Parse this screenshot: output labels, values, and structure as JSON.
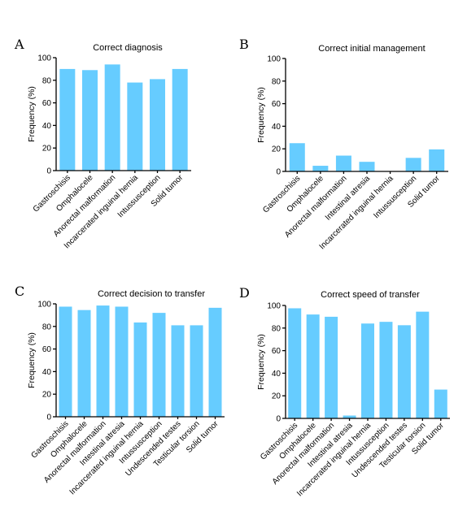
{
  "bar_color": "#66ccff",
  "chart_data": [
    {
      "type": "bar",
      "panel": "A",
      "title": "Correct diagnosis",
      "ylabel": "Frequency (%)",
      "ylim": [
        0,
        100
      ],
      "yticks": [
        0,
        20,
        40,
        60,
        80,
        100
      ],
      "categories": [
        "Gastroschisis",
        "Omphalocele",
        "Anorectal malformation",
        "Incarcerated inguinal hernia",
        "Intussusception",
        "Solid tumor"
      ],
      "values": [
        90,
        89,
        94,
        78,
        81,
        90
      ]
    },
    {
      "type": "bar",
      "panel": "B",
      "title": "Correct initial management",
      "ylabel": "Frequency (%)",
      "ylim": [
        0,
        100
      ],
      "yticks": [
        0,
        20,
        40,
        60,
        80,
        100
      ],
      "categories": [
        "Gastroschisis",
        "Omphalocele",
        "Anorectal malformation",
        "Intestinal atresia",
        "Incarcerated inguinal hernia",
        "Intussusception",
        "Solid tumor"
      ],
      "values": [
        25,
        5,
        14,
        8.5,
        0,
        12,
        19.5
      ]
    },
    {
      "type": "bar",
      "panel": "C",
      "title": "Correct decision to transfer",
      "ylabel": "Frequency (%)",
      "ylim": [
        0,
        100
      ],
      "yticks": [
        0,
        20,
        40,
        60,
        80,
        100
      ],
      "categories": [
        "Gastroschisis",
        "Omphalocele",
        "Anorectal malformation",
        "Intestinal atresia",
        "Incarcerated inguinal hernia",
        "Intussusception",
        "Undescended testes",
        "Testicular torsion",
        "Solid tumor"
      ],
      "values": [
        97.5,
        94.5,
        98.5,
        97.5,
        83.5,
        92,
        81,
        81,
        96.5
      ]
    },
    {
      "type": "bar",
      "panel": "D",
      "title": "Correct speed of transfer",
      "ylabel": "Frequency (%)",
      "ylim": [
        0,
        100
      ],
      "yticks": [
        0,
        20,
        40,
        60,
        80,
        100
      ],
      "categories": [
        "Gastroschisis",
        "Omphalocele",
        "Anorectal malformation",
        "Intestinal atresia",
        "Incarcerated inguinal hernia",
        "Intussusception",
        "Undescended testes",
        "Testicular torsion",
        "Solid tumor"
      ],
      "values": [
        97.5,
        92,
        90,
        2.5,
        84,
        85.5,
        82.5,
        94.5,
        25.5
      ]
    }
  ]
}
